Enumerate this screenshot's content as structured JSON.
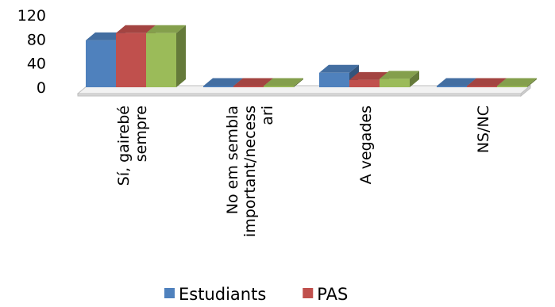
{
  "chart_data": {
    "type": "bar",
    "title": "",
    "xlabel": "",
    "ylabel": "",
    "ylim": [
      0,
      120
    ],
    "yticks": [
      0,
      40,
      80,
      120
    ],
    "categories": [
      [
        "Sí, gairebé",
        "sempre"
      ],
      [
        "No em sembla",
        "important/necess",
        "ari"
      ],
      [
        "A vegades"
      ],
      [
        "NS/NC"
      ]
    ],
    "series": [
      {
        "name": "Estudiants",
        "values": [
          78,
          1,
          24,
          1
        ],
        "color": "#4F81BD"
      },
      {
        "name": "PAS",
        "values": [
          90,
          1,
          12,
          1
        ],
        "color": "#C0504D"
      },
      {
        "values": [
          90,
          0,
          14,
          0
        ],
        "color": "#9BBB59"
      }
    ],
    "legend_position": "bottom",
    "grid": false,
    "style": "3d-clustered-column"
  }
}
